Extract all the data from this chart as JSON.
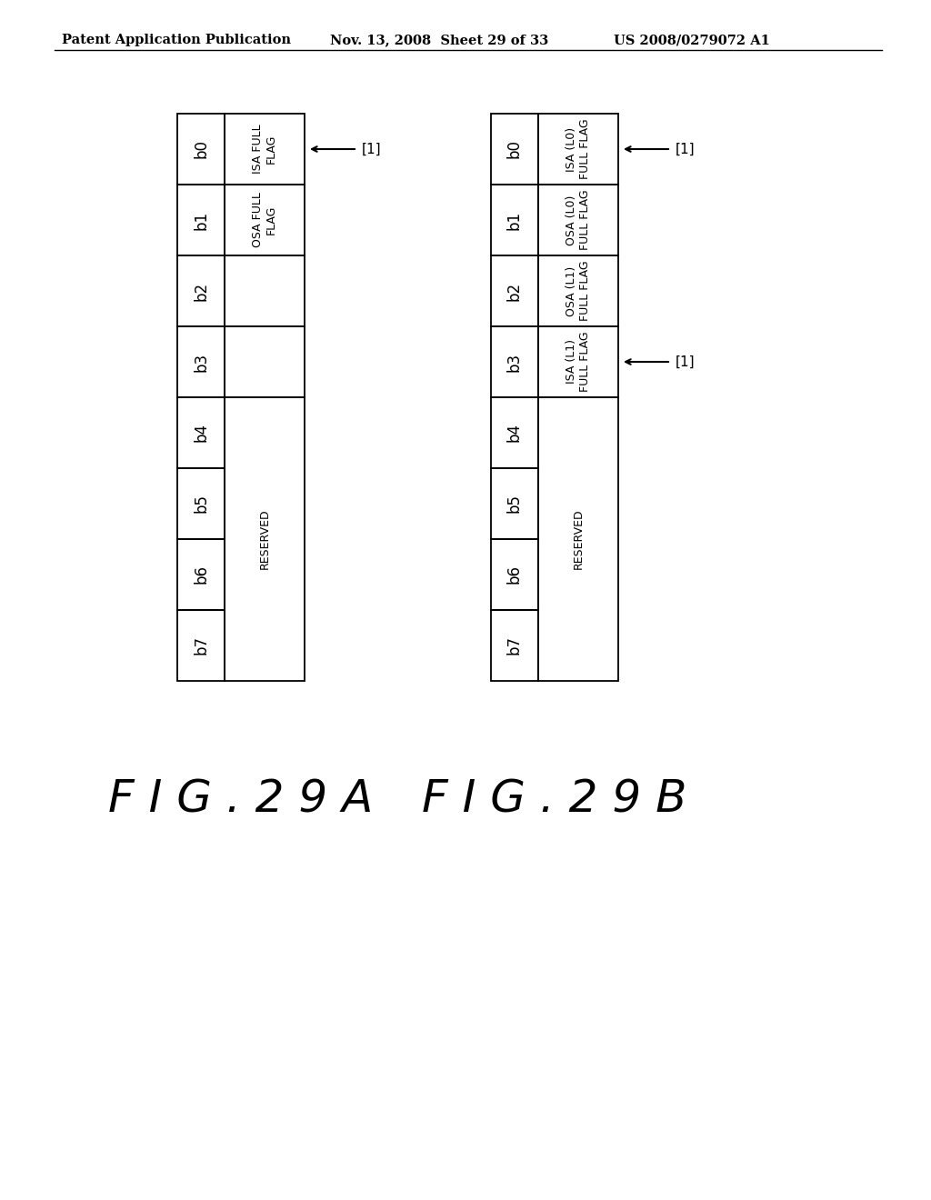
{
  "header_left": "Patent Application Publication",
  "header_mid": "Nov. 13, 2008  Sheet 29 of 33",
  "header_right": "US 2008/0279072 A1",
  "fig_a_label": "F I G . 2 9 A",
  "fig_b_label": "F I G . 2 9 B",
  "fig_a_col1": [
    "b0",
    "b1",
    "b2",
    "b3",
    "b4",
    "b5",
    "b6",
    "b7"
  ],
  "fig_a_col2": [
    {
      "text": "ISA FULL\nFLAG",
      "rows": 1
    },
    {
      "text": "OSA FULL\nFLAG",
      "rows": 1
    },
    {
      "text": "",
      "rows": 1
    },
    {
      "text": "",
      "rows": 1
    },
    {
      "text": "RESERVED",
      "rows": 4
    }
  ],
  "fig_a_arrow_row": 0,
  "fig_b_col1": [
    "b0",
    "b1",
    "b2",
    "b3",
    "b4",
    "b5",
    "b6",
    "b7"
  ],
  "fig_b_col2": [
    {
      "text": "ISA (L0)\nFULL FLAG",
      "rows": 1
    },
    {
      "text": "OSA (L0)\nFULL FLAG",
      "rows": 1
    },
    {
      "text": "OSA (L1)\nFULL FLAG",
      "rows": 1
    },
    {
      "text": "ISA (L1)\nFULL FLAG",
      "rows": 1
    },
    {
      "text": "RESERVED",
      "rows": 4
    }
  ],
  "fig_b_arrow_rows": [
    0,
    3
  ],
  "arrow_label": "[1]",
  "background_color": "#ffffff",
  "line_color": "#000000",
  "text_color": "#000000"
}
